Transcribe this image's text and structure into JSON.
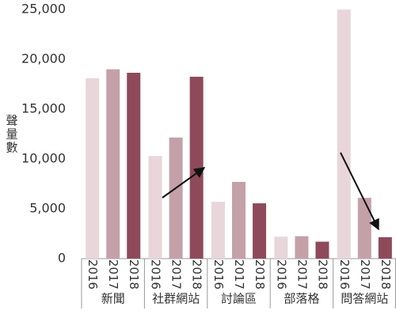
{
  "chart_data": {
    "type": "bar",
    "y_label": "聲量數",
    "categories": [
      "新聞",
      "社群網站",
      "討論區",
      "部落格",
      "問答網站"
    ],
    "series": [
      {
        "name": "2016",
        "color": "#e8d6da",
        "values": [
          18100,
          10300,
          5700,
          2200,
          25000
        ]
      },
      {
        "name": "2017",
        "color": "#c4a1a9",
        "values": [
          19000,
          12150,
          7700,
          2250,
          6100
        ]
      },
      {
        "name": "2018",
        "color": "#8e4a5a",
        "values": [
          18650,
          18250,
          5550,
          1700,
          2150
        ]
      }
    ],
    "ylim": [
      0,
      25000
    ],
    "yticks": [
      0,
      {
        "value": 5000,
        "label": "5,000"
      },
      {
        "value": 10000,
        "label": "10,000"
      },
      {
        "value": 15000,
        "label": "15,000"
      },
      {
        "value": 20000,
        "label": "20,000"
      },
      {
        "value": 25000,
        "label": "25,000"
      }
    ],
    "grid": false
  }
}
